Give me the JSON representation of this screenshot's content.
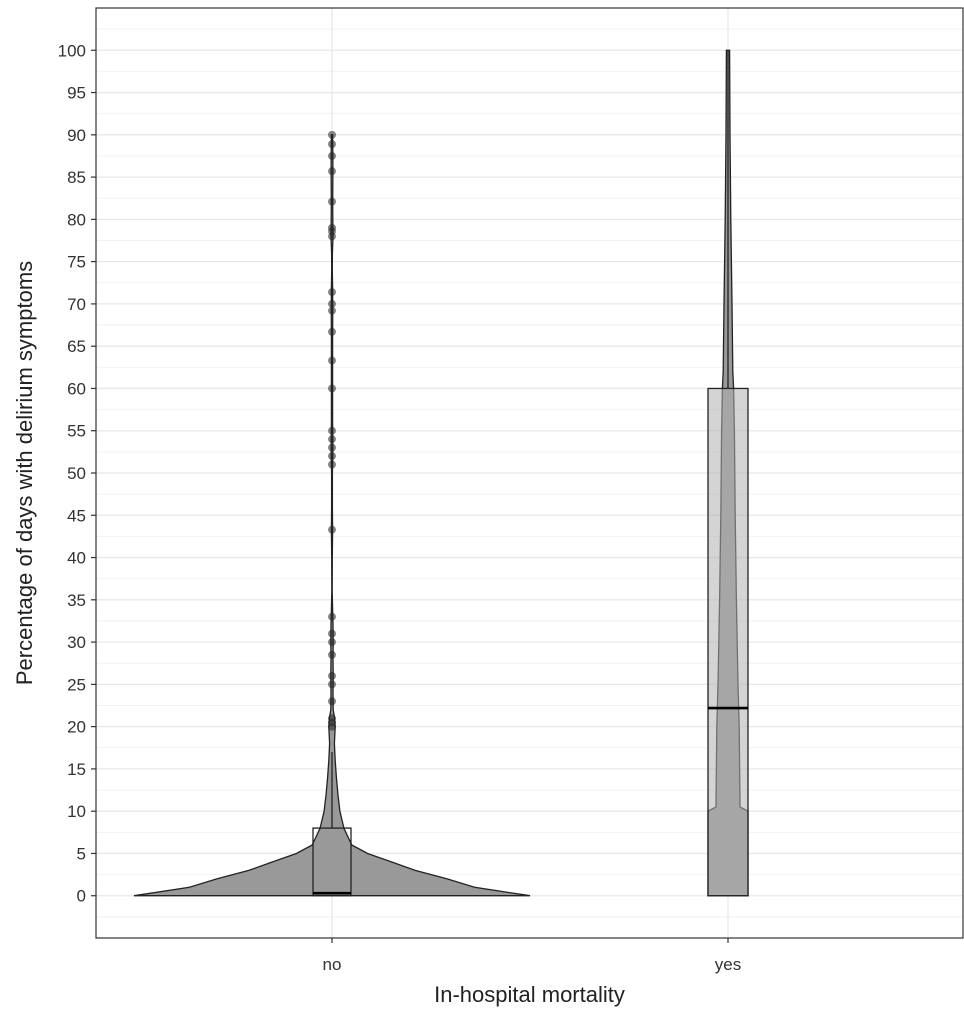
{
  "chart_data": {
    "type": "violin",
    "xlabel": "In-hospital mortality",
    "ylabel": "Percentage of days with delirium symptoms",
    "categories": [
      "no",
      "yes"
    ],
    "ylim": [
      -5,
      105
    ],
    "y_ticks": [
      0,
      5,
      10,
      15,
      20,
      25,
      30,
      35,
      40,
      45,
      50,
      55,
      60,
      65,
      70,
      75,
      80,
      85,
      90,
      95,
      100
    ],
    "grid": true,
    "colors": {
      "violin_fill": "#999999",
      "outline": "#222222",
      "grid": "#e8e8e8",
      "box_fill": "#b0b0b0"
    },
    "groups": [
      {
        "category": "no",
        "box": {
          "q1": 0,
          "median": 0.3,
          "q3": 8,
          "whisker_low": 0,
          "whisker_high": 17
        },
        "violin_profile": [
          [
            0,
            100
          ],
          [
            1,
            72
          ],
          [
            2,
            58
          ],
          [
            3,
            42
          ],
          [
            4,
            30
          ],
          [
            5,
            18
          ],
          [
            6,
            10
          ],
          [
            8,
            6
          ],
          [
            10,
            4
          ],
          [
            12,
            3
          ],
          [
            14,
            2.2
          ],
          [
            16,
            1.6
          ],
          [
            18,
            1.2
          ],
          [
            19,
            1.4
          ],
          [
            20,
            1.6
          ],
          [
            21,
            1.3
          ],
          [
            22,
            0.6
          ],
          [
            24,
            0.5
          ],
          [
            26,
            0.6
          ],
          [
            28,
            0.5
          ],
          [
            30,
            0.6
          ],
          [
            32,
            0.5
          ],
          [
            34,
            0.3
          ],
          [
            36,
            0.1
          ],
          [
            40,
            0.15
          ],
          [
            43,
            0.3
          ],
          [
            46,
            0.2
          ],
          [
            50,
            0.2
          ],
          [
            52,
            0.4
          ],
          [
            54,
            0.4
          ],
          [
            56,
            0.3
          ],
          [
            60,
            0.3
          ],
          [
            63,
            0.3
          ],
          [
            66,
            0.3
          ],
          [
            68,
            0.35
          ],
          [
            70,
            0.35
          ],
          [
            72,
            0.3
          ],
          [
            74,
            0.15
          ],
          [
            76,
            0.2
          ],
          [
            78,
            0.5
          ],
          [
            80,
            0.4
          ],
          [
            82,
            0.35
          ],
          [
            84,
            0.4
          ],
          [
            86,
            0.45
          ],
          [
            88,
            0.4
          ],
          [
            90,
            0.3
          ]
        ],
        "points": [
          20,
          20.5,
          21,
          23,
          25,
          26,
          28.5,
          30,
          31,
          33,
          43.3,
          51,
          52,
          53,
          54,
          55,
          60,
          63.3,
          66.7,
          69.2,
          70,
          71.4,
          78,
          78.6,
          79,
          82.1,
          85.7,
          87.5,
          88.9,
          90
        ]
      },
      {
        "category": "yes",
        "box": {
          "q1": 0,
          "median": 22.2,
          "q3": 60,
          "whisker_low": 0,
          "whisker_high": 100
        },
        "violin_profile": [
          [
            0,
            100
          ],
          [
            10,
            100
          ],
          [
            10.5,
            60
          ],
          [
            20,
            56
          ],
          [
            25,
            50
          ],
          [
            35,
            42
          ],
          [
            45,
            36
          ],
          [
            55,
            32
          ],
          [
            60,
            28
          ],
          [
            62,
            24
          ],
          [
            70,
            20
          ],
          [
            80,
            14
          ],
          [
            90,
            10
          ],
          [
            100,
            8
          ]
        ]
      }
    ]
  }
}
